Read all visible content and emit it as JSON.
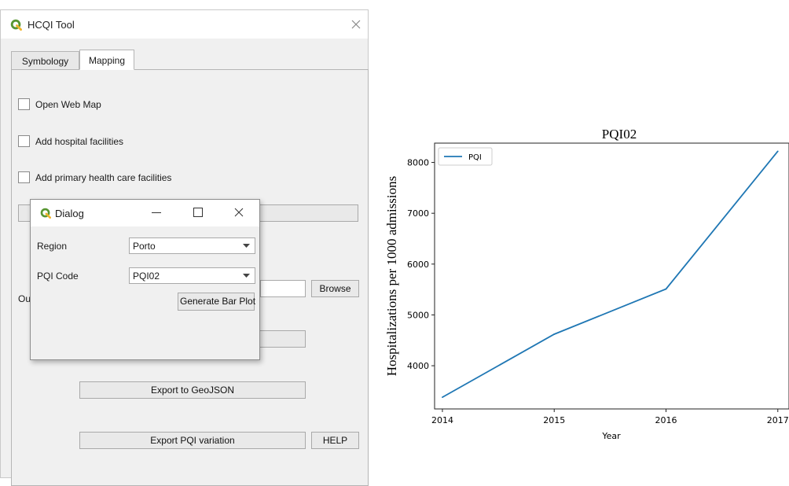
{
  "window": {
    "title": "HCQI Tool",
    "tabs": [
      "Symbology",
      "Mapping"
    ],
    "active_tab": "Mapping",
    "checkboxes": [
      {
        "label": "Open Web Map",
        "checked": false
      },
      {
        "label": "Add hospital facilities",
        "checked": false
      },
      {
        "label": "Add primary health care facilities",
        "checked": false
      }
    ],
    "output_label": "Ou",
    "browse_label": "Browse",
    "export_geojson_label": "Export to GeoJSON",
    "export_pqi_label": "Export PQI variation",
    "help_label": "HELP"
  },
  "dialog": {
    "title": "Dialog",
    "region_label": "Region",
    "region_value": "Porto",
    "pqi_label": "PQI Code",
    "pqi_value": "PQI02",
    "generate_label": "Generate Bar Plot"
  },
  "colors": {
    "accent_green": "#589632",
    "line_blue": "#1f77b4"
  },
  "chart_data": {
    "type": "line",
    "title": "PQI02",
    "xlabel": "Year",
    "ylabel": "Hospitalizations per 1000 admissions",
    "x": [
      2014,
      2015,
      2016,
      2017
    ],
    "xticks": [
      "2014",
      "2015",
      "2016",
      "2017"
    ],
    "yticks": [
      4000,
      5000,
      6000,
      7000,
      8000
    ],
    "xlim": [
      2013.93,
      2017.1
    ],
    "ylim": [
      3150,
      8380
    ],
    "series": [
      {
        "name": "PQI",
        "values": [
          3380,
          4620,
          5510,
          8220
        ]
      }
    ],
    "legend": "top-left",
    "grid": false
  }
}
